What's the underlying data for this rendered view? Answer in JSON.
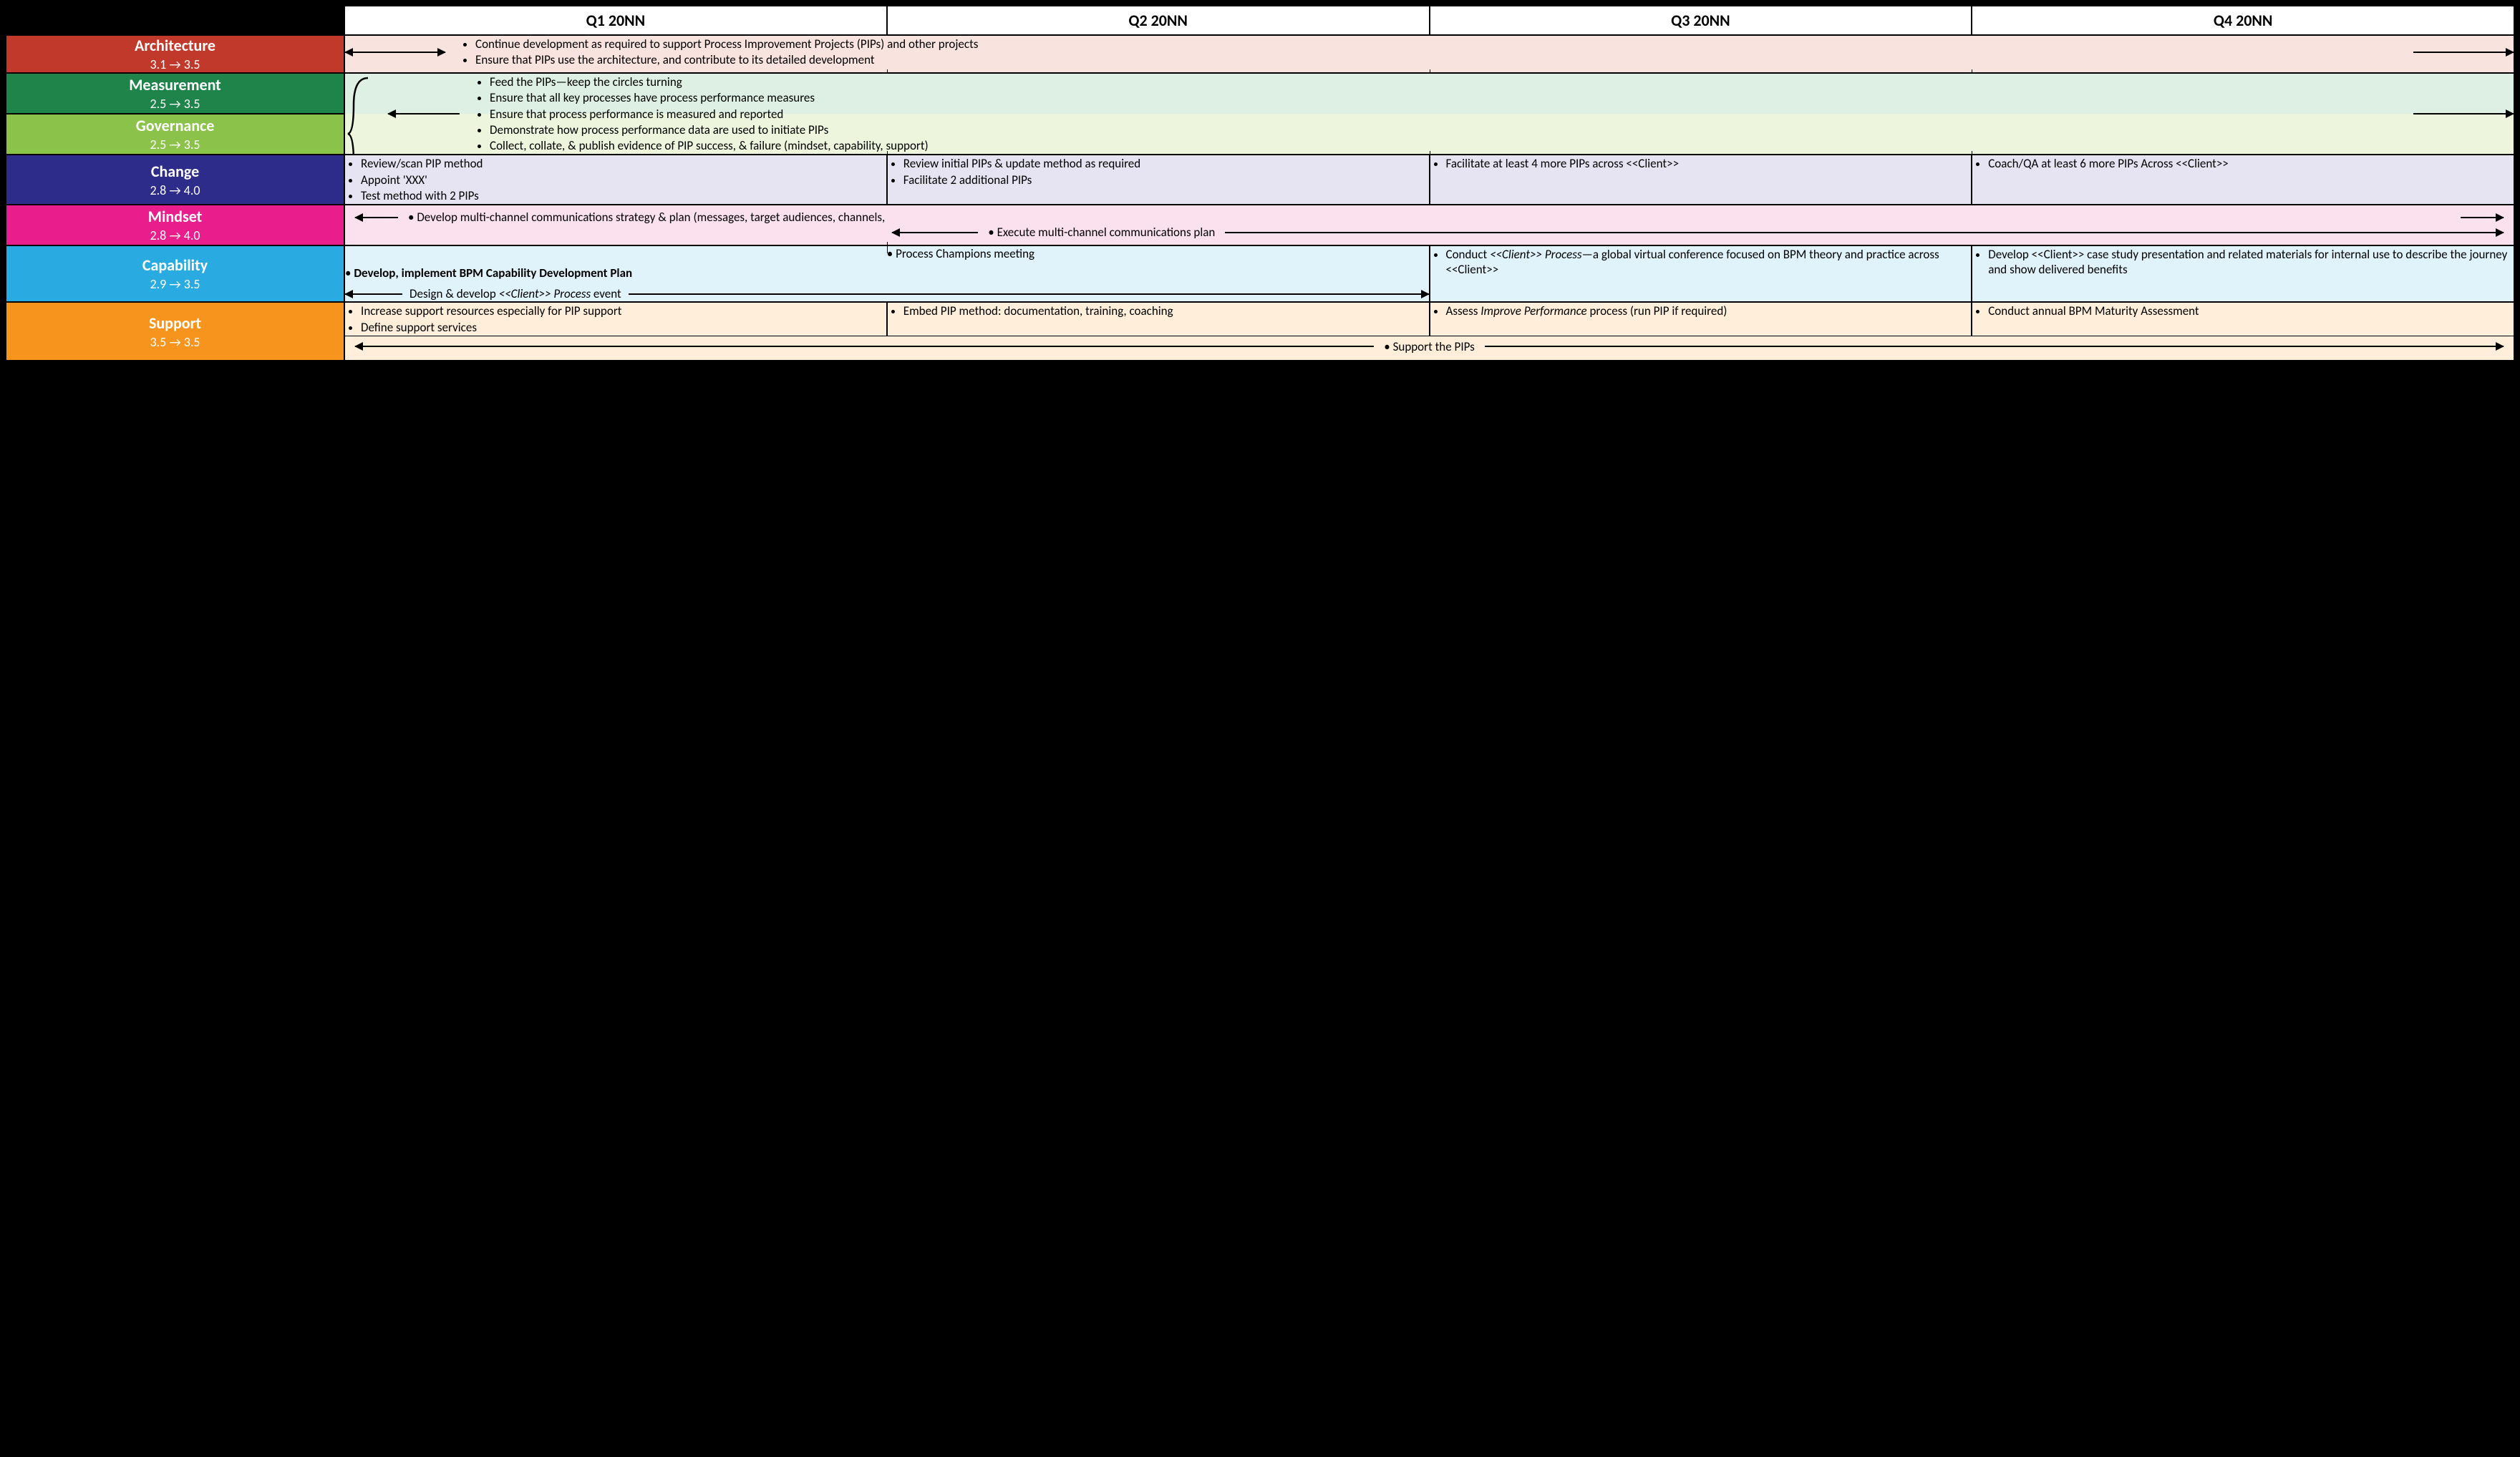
{
  "quarters": [
    "Q1 20NN",
    "Q2 20NN",
    "Q3 20NN",
    "Q4 20NN"
  ],
  "categories": {
    "architecture": {
      "title": "Architecture",
      "range": "3.1 → 3.5",
      "bg": "#c0392b",
      "fg": "#ffffff",
      "row_bg": "#f9e3df"
    },
    "measurement": {
      "title": "Measurement",
      "range": "2.5 → 3.5",
      "bg": "#1e8449",
      "fg": "#ffffff",
      "row_bg": "#def0e4"
    },
    "governance": {
      "title": "Governance",
      "range": "2.5 → 3.5",
      "bg": "#8bc34a",
      "fg": "#ffffff",
      "row_bg": "#eef5dd"
    },
    "change": {
      "title": "Change",
      "range": "2.8 → 4.0",
      "bg": "#2e2c8a",
      "fg": "#ffffff",
      "row_bg": "#e6e4f2"
    },
    "mindset": {
      "title": "Mindset",
      "range": "2.8 → 4.0",
      "bg": "#e91e8c",
      "fg": "#ffffff",
      "row_bg": "#fbe0ed"
    },
    "capability": {
      "title": "Capability",
      "range": "2.9 → 3.5",
      "bg": "#29abe2",
      "fg": "#ffffff",
      "row_bg": "#e0f2fa"
    },
    "support": {
      "title": "Support",
      "range": "3.5 → 3.5",
      "bg": "#f7941d",
      "fg": "#ffffff",
      "row_bg": "#feeeda"
    }
  },
  "architecture_bullets": [
    "Continue development as required to support Process Improvement Projects (PIPs) and other projects",
    "Ensure that PIPs use the architecture, and contribute to its detailed development"
  ],
  "meas_gov_bullets": [
    "Feed the PIPs—keep the circles turning",
    "Ensure that all key processes have process performance measures",
    "Ensure that process performance is measured and reported",
    "Demonstrate how process performance data are used to initiate PIPs",
    "Collect, collate, & publish evidence of PIP success, & failure (mindset, capability, support)"
  ],
  "change": {
    "q1": [
      "Review/scan PIP method",
      "Appoint 'XXX'",
      "Test method with 2 PIPs"
    ],
    "q2": [
      "Review initial PIPs & update method as required",
      "Facilitate 2 additional PIPs"
    ],
    "q3": [
      "Facilitate at least 4 more PIPs across <<Client>>"
    ],
    "q4": [
      "Coach/QA at least 6 more PIPs Across <<Client>>"
    ]
  },
  "mindset": {
    "line1": "Develop multi-channel communications strategy & plan (messages, target audiences, channels,",
    "line2": "Execute multi-channel communications plan"
  },
  "capability": {
    "q12_top": "Process Champions meeting",
    "q12_bold": "Develop, implement BPM Capability Development Plan",
    "q12_arrow_label": "Design & develop <<Client>> Process event",
    "q3": "Conduct <<Client>> Process—a global virtual conference focused on BPM theory and practice across <<Client>>",
    "q4": "Develop <<Client>> case study presentation and related materials for internal use to describe the journey and show delivered benefits"
  },
  "support": {
    "q1": [
      "Increase support resources especially for PIP support",
      "Define support services"
    ],
    "q2": [
      "Embed PIP method: documentation, training, coaching"
    ],
    "q3": [
      "Assess Improve Performance process (run PIP if required)"
    ],
    "q4": [
      "Conduct annual BPM Maturity Assessment"
    ],
    "span": "Support the PIPs"
  },
  "layout": {
    "label_col_width_pct": 13.5,
    "quarter_col_width_pct": 21.625,
    "header_fontsize": 22,
    "cat_title_fontsize": 22,
    "cat_range_fontsize": 18,
    "body_fontsize": 17,
    "border_color": "#000000",
    "page_bg": "#000000"
  }
}
